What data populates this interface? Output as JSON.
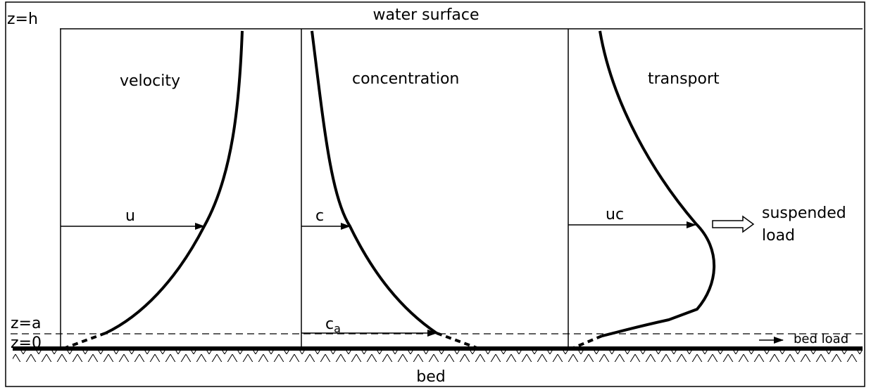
{
  "header": {
    "surface": "water surface",
    "bed": "bed"
  },
  "levels": {
    "top": "z=h",
    "ref": "z=a",
    "zero": "z=0"
  },
  "profiles": [
    {
      "title": "velocity",
      "symbol": "u"
    },
    {
      "title": "concentration",
      "symbol": "c",
      "reference": {
        "base": "c",
        "sub": "a"
      }
    },
    {
      "title": "transport",
      "symbol": "uc"
    }
  ],
  "loads": {
    "suspended": [
      "suspended",
      "load"
    ],
    "bed": "bed load"
  }
}
